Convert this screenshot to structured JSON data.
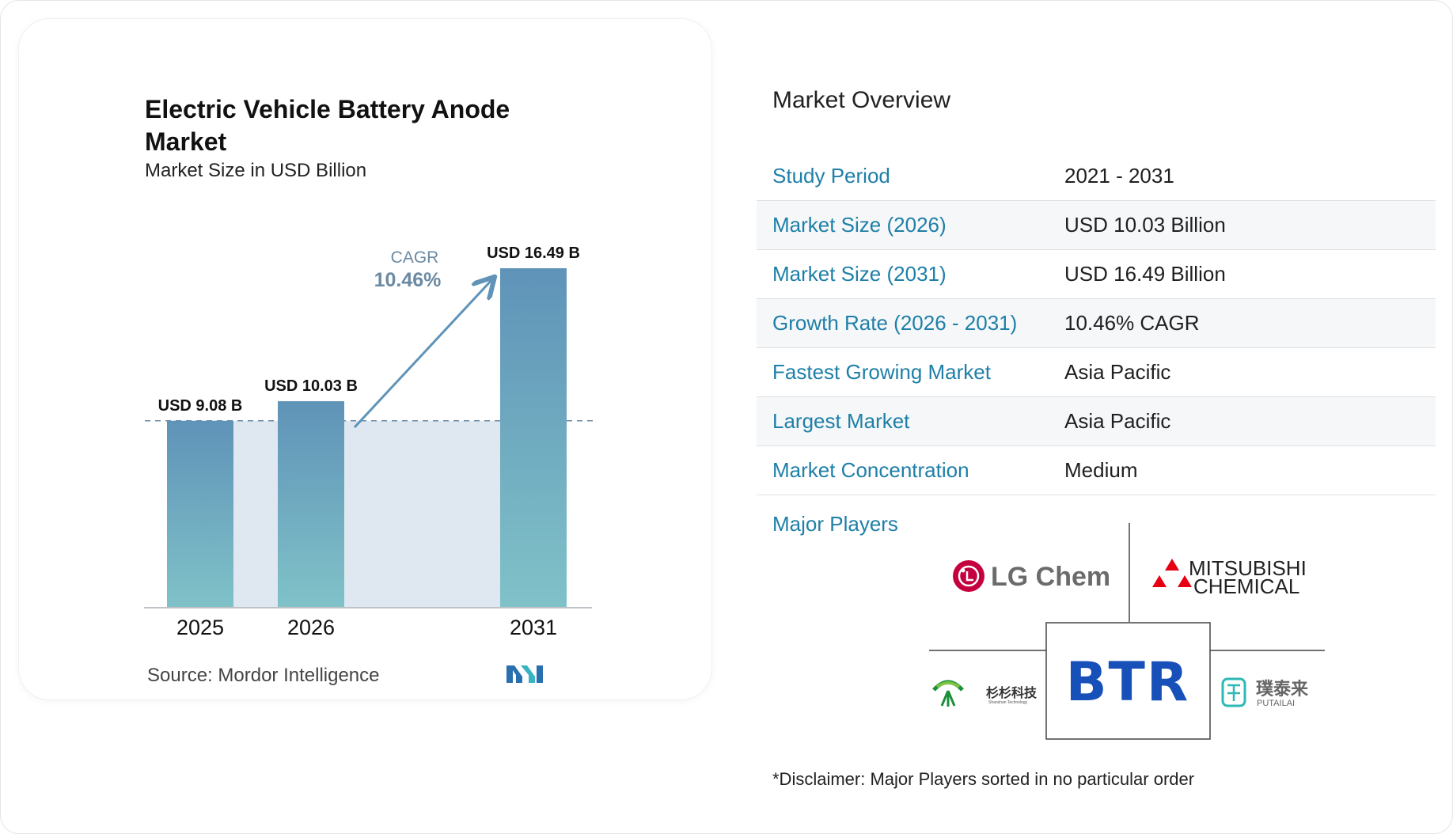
{
  "chart_data": {
    "type": "bar",
    "title": "Electric Vehicle Battery Anode Market",
    "subtitle": "Market Size in USD Billion",
    "categories": [
      "2025",
      "2026",
      "2031"
    ],
    "values": [
      9.08,
      10.03,
      16.49
    ],
    "data_labels": [
      "USD 9.08 B",
      "USD 10.03 B",
      "USD 16.49 B"
    ],
    "unit": "USD Billion",
    "cagr_label": "CAGR",
    "cagr_value": "10.46%",
    "ylim": [
      0,
      16.49
    ],
    "grid": false,
    "legend": "none",
    "colors": {
      "bar_top": "#5f93b8",
      "bar_bottom": "#80c2c8",
      "band": "#dfe8f1",
      "arrow": "#5f93b8",
      "axis": "#bfc3c7",
      "dashed": "#6b8aa3"
    }
  },
  "source_label": "Source:",
  "source_text": "Mordor Intelligence",
  "overview": {
    "title": "Market Overview",
    "rows": [
      {
        "key": "Study Period",
        "value": "2021 - 2031"
      },
      {
        "key": "Market Size (2026)",
        "value": "USD 10.03 Billion"
      },
      {
        "key": "Market Size (2031)",
        "value": "USD 16.49 Billion"
      },
      {
        "key": "Growth Rate (2026 - 2031)",
        "value": "10.46% CAGR"
      },
      {
        "key": "Fastest Growing Market",
        "value": "Asia Pacific"
      },
      {
        "key": "Largest Market",
        "value": "Asia Pacific"
      },
      {
        "key": "Market Concentration",
        "value": "Medium"
      }
    ],
    "accent_color": "#1e7fa8"
  },
  "players": {
    "label": "Major Players",
    "logos": [
      {
        "name": "LG Chem",
        "text": "LG Chem"
      },
      {
        "name": "Mitsubishi Chemical",
        "text_line1": "MITSUBISHI",
        "text_line2": "CHEMICAL"
      },
      {
        "name": "Shanshan",
        "text": "杉杉科技",
        "subtext": "Shanshan Technology"
      },
      {
        "name": "BTR",
        "text": "BTR"
      },
      {
        "name": "Putailai",
        "text": "璞泰来",
        "subtext": "PUTAILAI"
      }
    ]
  },
  "disclaimer": "*Disclaimer: Major Players sorted in no particular order"
}
